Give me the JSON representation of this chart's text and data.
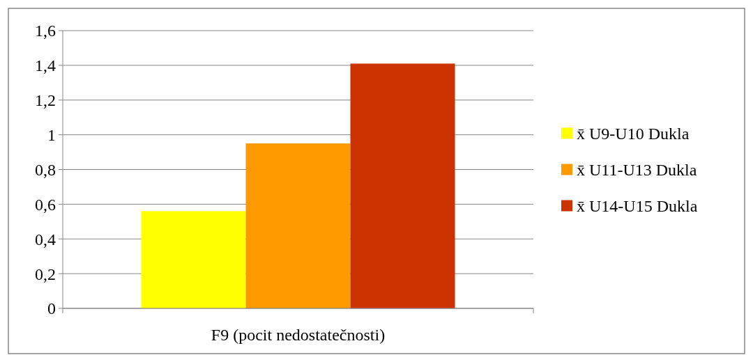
{
  "chart_data": {
    "type": "bar",
    "categories": [
      "F9 (pocit nedostatečnosti)"
    ],
    "series": [
      {
        "name": "x̄ U9-U10 Dukla",
        "color": "#ffff00",
        "values": [
          0.56
        ]
      },
      {
        "name": "x̄ U11-U13 Dukla",
        "color": "#ff9900",
        "values": [
          0.95
        ]
      },
      {
        "name": "x̄ U14-U15 Dukla",
        "color": "#cc3300",
        "values": [
          1.41
        ]
      }
    ],
    "ylim": [
      0,
      1.6
    ],
    "yticks": [
      0,
      {
        "value": 0.2,
        "label": "0,2"
      },
      {
        "value": 0.4,
        "label": "0,4"
      },
      {
        "value": 0.6,
        "label": "0,6"
      },
      {
        "value": 0.8,
        "label": "0,8"
      },
      1,
      {
        "value": 1.2,
        "label": "1,2"
      },
      {
        "value": 1.4,
        "label": "1,4"
      },
      {
        "value": 1.6,
        "label": "1,6"
      }
    ],
    "grid": "y",
    "legend": "right"
  }
}
